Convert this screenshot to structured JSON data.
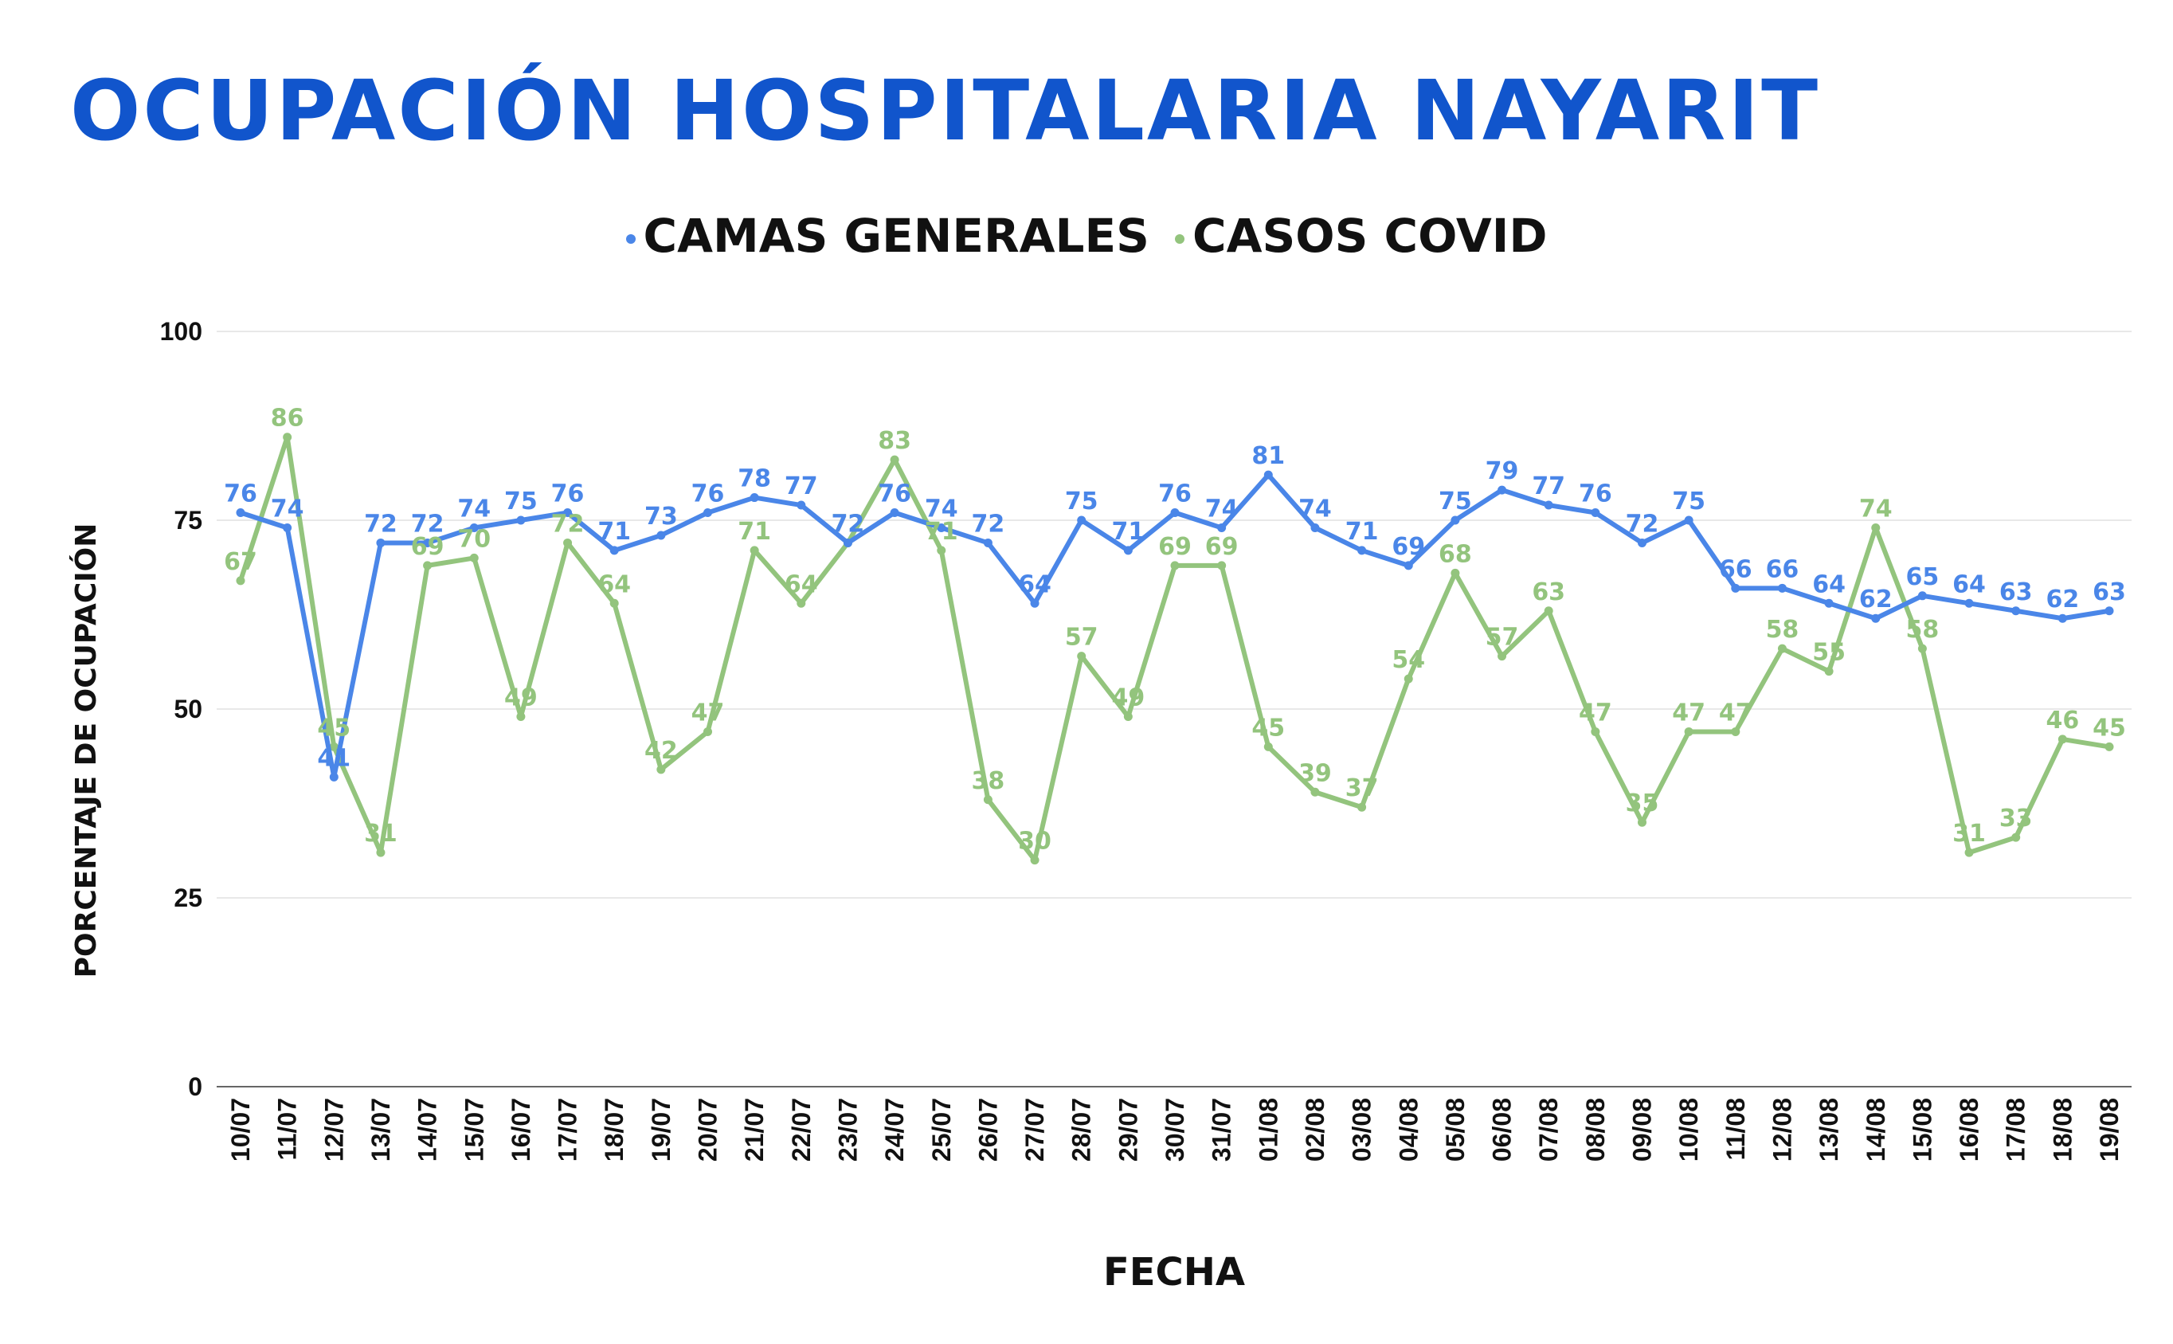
{
  "chart_data": {
    "type": "line",
    "title": "OCUPACIÓN HOSPITALARIA NAYARIT",
    "xlabel": "FECHA",
    "ylabel": "PORCENTAJE DE OCUPACIÓN",
    "ylim": [
      0,
      100
    ],
    "yticks": [
      0,
      25,
      50,
      75,
      100
    ],
    "grid": true,
    "legend_position": "top-center",
    "categories": [
      "10/07",
      "11/07",
      "12/07",
      "13/07",
      "14/07",
      "15/07",
      "16/07",
      "17/07",
      "18/07",
      "19/07",
      "20/07",
      "21/07",
      "22/07",
      "23/07",
      "24/07",
      "25/07",
      "26/07",
      "27/07",
      "28/07",
      "29/07",
      "30/07",
      "31/07",
      "01/08",
      "02/08",
      "03/08",
      "04/08",
      "05/08",
      "06/08",
      "07/08",
      "08/08",
      "09/08",
      "10/08",
      "11/08",
      "12/08",
      "13/08",
      "14/08",
      "15/08",
      "16/08",
      "17/08",
      "18/08",
      "19/08"
    ],
    "series": [
      {
        "name": "CAMAS GENERALES",
        "color": "#4a86e8",
        "values": [
          76,
          74,
          41,
          72,
          72,
          74,
          75,
          76,
          71,
          73,
          76,
          78,
          77,
          72,
          76,
          74,
          72,
          64,
          75,
          71,
          76,
          74,
          81,
          74,
          71,
          69,
          75,
          79,
          77,
          76,
          72,
          75,
          66,
          66,
          64,
          62,
          65,
          64,
          63,
          62,
          63
        ]
      },
      {
        "name": "CASOS COVID",
        "color": "#93c47d",
        "values": [
          67,
          86,
          45,
          31,
          69,
          70,
          49,
          72,
          64,
          42,
          47,
          71,
          64,
          72,
          83,
          71,
          38,
          30,
          57,
          49,
          69,
          69,
          45,
          39,
          37,
          54,
          68,
          57,
          63,
          47,
          35,
          47,
          47,
          58,
          55,
          74,
          58,
          31,
          33,
          46,
          45
        ]
      }
    ]
  },
  "colors": {
    "title": "#1155cc",
    "grid": "#e0e0e0",
    "axis": "#666666"
  }
}
